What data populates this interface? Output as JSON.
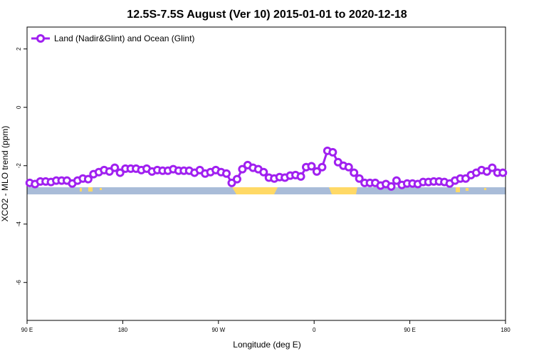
{
  "chart_data": {
    "type": "line",
    "title": "12.5S-7.5S August (Ver 10)   2015-01-01 to 2020-12-18",
    "xlabel": "Longitude (deg E)",
    "ylabel": "XCO2 - MLO trend (ppm)",
    "xlim": [
      90,
      540
    ],
    "ylim": [
      -7.3,
      2.75
    ],
    "xticks": [
      {
        "value": 90,
        "label": "90 E"
      },
      180,
      {
        "value": 270,
        "label": "90 W"
      },
      {
        "value": 360,
        "label": "0"
      },
      {
        "value": 450,
        "label": "90 E"
      },
      {
        "value": 540,
        "label": "180"
      }
    ],
    "yticks": [
      -6,
      -4,
      -2,
      0,
      2
    ],
    "legend": "top-left",
    "x": [
      92.5,
      97.5,
      102.5,
      107.5,
      112.5,
      117.5,
      122.5,
      127.5,
      132.5,
      137.5,
      142.5,
      147.5,
      152.5,
      157.5,
      162.5,
      167.5,
      172.5,
      177.5,
      182.5,
      187.5,
      192.5,
      197.5,
      202.5,
      207.5,
      212.5,
      217.5,
      222.5,
      227.5,
      232.5,
      237.5,
      242.5,
      247.5,
      252.5,
      257.5,
      262.5,
      267.5,
      272.5,
      277.5,
      282.5,
      287.5,
      292.5,
      297.5,
      302.5,
      307.5,
      312.5,
      317.5,
      322.5,
      327.5,
      332.5,
      337.5,
      342.5,
      347.5,
      352.5,
      357.5,
      362.5,
      367.5,
      372.5,
      377.5,
      382.5,
      387.5,
      392.5,
      397.5,
      402.5,
      407.5,
      412.5,
      417.5,
      422.5,
      427.5,
      432.5,
      437.5,
      442.5,
      447.5,
      452.5,
      457.5,
      462.5,
      467.5,
      472.5,
      477.5,
      482.5,
      487.5,
      492.5,
      497.5,
      502.5,
      507.5,
      512.5,
      517.5,
      522.5,
      527.5,
      532.5,
      537.5
    ],
    "series": [
      {
        "name": "Land (Nadir&Glint) and Ocean (Glint)",
        "color": "#a020f0",
        "values": [
          -2.59,
          -2.63,
          -2.54,
          -2.54,
          -2.56,
          -2.51,
          -2.51,
          -2.51,
          -2.61,
          -2.51,
          -2.44,
          -2.46,
          -2.29,
          -2.22,
          -2.15,
          -2.2,
          -2.07,
          -2.24,
          -2.1,
          -2.1,
          -2.1,
          -2.15,
          -2.1,
          -2.2,
          -2.15,
          -2.17,
          -2.17,
          -2.12,
          -2.17,
          -2.17,
          -2.17,
          -2.24,
          -2.15,
          -2.27,
          -2.22,
          -2.15,
          -2.22,
          -2.27,
          -2.59,
          -2.46,
          -2.12,
          -1.98,
          -2.07,
          -2.12,
          -2.22,
          -2.41,
          -2.44,
          -2.39,
          -2.41,
          -2.34,
          -2.32,
          -2.37,
          -2.05,
          -2.02,
          -2.2,
          -2.05,
          -1.49,
          -1.54,
          -1.88,
          -2.0,
          -2.05,
          -2.24,
          -2.44,
          -2.59,
          -2.59,
          -2.59,
          -2.68,
          -2.63,
          -2.71,
          -2.51,
          -2.66,
          -2.61,
          -2.61,
          -2.63,
          -2.56,
          -2.56,
          -2.54,
          -2.54,
          -2.56,
          -2.61,
          -2.51,
          -2.44,
          -2.44,
          -2.32,
          -2.24,
          -2.15,
          -2.2,
          -2.07,
          -2.24,
          -2.24
        ]
      }
    ]
  }
}
